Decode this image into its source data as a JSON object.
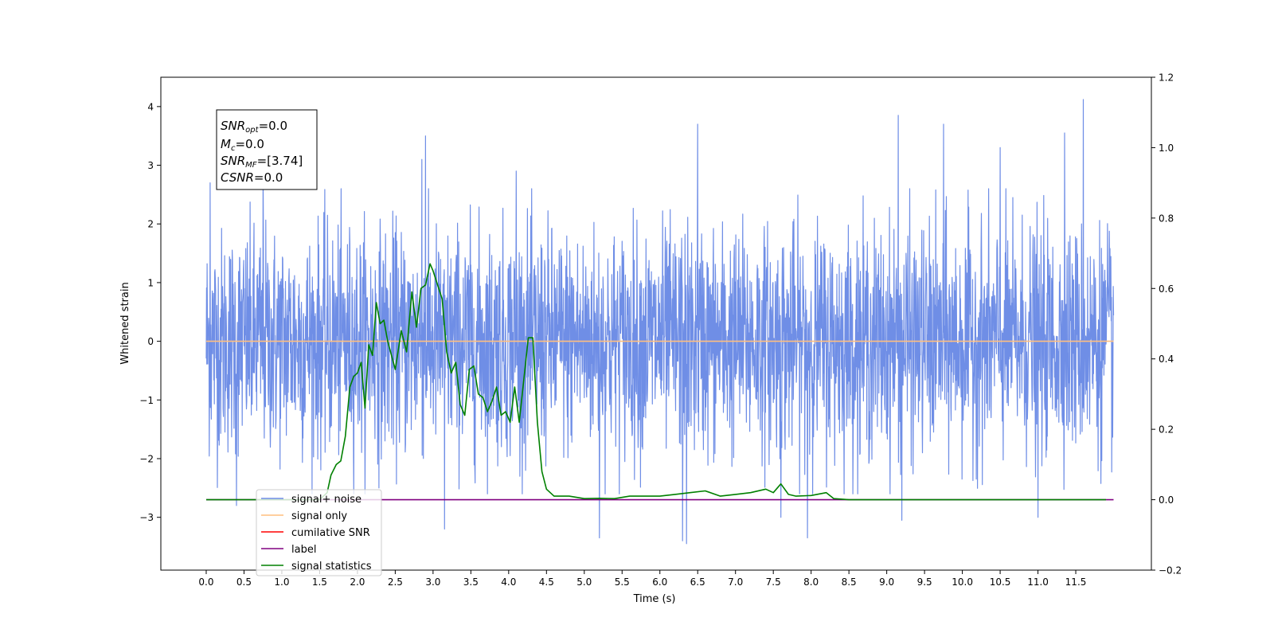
{
  "chart_data": {
    "type": "line",
    "xlabel": "Time (s)",
    "ylabel": "Whitened strain",
    "xlim": [
      -0.6,
      12.5
    ],
    "ylim": [
      -3.9,
      4.5
    ],
    "y2lim": [
      -0.2,
      1.2
    ],
    "x_ticks": [
      "0.0",
      "0.5",
      "1.0",
      "1.5",
      "2.0",
      "2.5",
      "3.0",
      "3.5",
      "4.0",
      "4.5",
      "5.0",
      "5.5",
      "6.0",
      "6.5",
      "7.0",
      "7.5",
      "8.0",
      "8.5",
      "9.0",
      "9.5",
      "10.0",
      "10.5",
      "11.0",
      "11.5"
    ],
    "y_ticks": [
      "4",
      "3",
      "2",
      "1",
      "0",
      "−1",
      "−2",
      "−3"
    ],
    "y2_ticks": [
      "1.2",
      "1.0",
      "0.8",
      "0.6",
      "0.4",
      "0.2",
      "0.0",
      "−0.2"
    ],
    "annotation": {
      "line1_sym": "SNR",
      "line1_sub": "opt",
      "line1_val": "=0.0",
      "line2_sym": "M",
      "line2_sub": "c",
      "line2_val": "=0.0",
      "line3_sym": "SNR",
      "line3_sub": "MF",
      "line3_val": "=[3.74]",
      "line4_sym": "CSNR",
      "line4_val": "=0.0"
    },
    "noise_range": [
      0.0,
      12.0
    ],
    "noise_spikes": [
      {
        "x": 0.05,
        "y": 2.7
      },
      {
        "x": 0.75,
        "y": 2.95
      },
      {
        "x": 2.85,
        "y": 3.1
      },
      {
        "x": 2.9,
        "y": 3.5
      },
      {
        "x": 4.1,
        "y": 2.9
      },
      {
        "x": 6.5,
        "y": 3.7
      },
      {
        "x": 9.15,
        "y": 3.85
      },
      {
        "x": 9.75,
        "y": 3.7
      },
      {
        "x": 11.6,
        "y": 4.12
      },
      {
        "x": 11.35,
        "y": 3.55
      },
      {
        "x": 10.5,
        "y": 3.3
      },
      {
        "x": 5.2,
        "y": -3.35
      },
      {
        "x": 6.3,
        "y": -3.4
      },
      {
        "x": 6.35,
        "y": -3.45
      },
      {
        "x": 7.95,
        "y": -3.35
      },
      {
        "x": 3.15,
        "y": -3.2
      },
      {
        "x": 9.2,
        "y": -3.05
      },
      {
        "x": 0.4,
        "y": -2.8
      },
      {
        "x": 7.6,
        "y": -3.0
      },
      {
        "x": 11.0,
        "y": -3.0
      }
    ],
    "series": [
      {
        "name": "signal+ noise",
        "color": "#6f8ee6",
        "axis": "left",
        "kind": "noise"
      },
      {
        "name": "signal only",
        "color": "#ffbf7f",
        "axis": "left",
        "x": [
          0.0,
          12.0
        ],
        "y": [
          0.0,
          0.0
        ]
      },
      {
        "name": "cumilative SNR",
        "color": "#ff0000",
        "axis": "right",
        "x": [],
        "y": []
      },
      {
        "name": "label",
        "color": "#800080",
        "axis": "right",
        "x": [
          0.0,
          12.0
        ],
        "y": [
          0.0,
          0.0
        ]
      },
      {
        "name": "signal statistics",
        "color": "#008000",
        "axis": "right",
        "x": [
          0.0,
          0.1,
          0.5,
          1.0,
          1.5,
          1.6,
          1.65,
          1.72,
          1.78,
          1.84,
          1.9,
          1.95,
          2.0,
          2.05,
          2.1,
          2.15,
          2.2,
          2.25,
          2.3,
          2.35,
          2.4,
          2.5,
          2.58,
          2.65,
          2.72,
          2.78,
          2.84,
          2.9,
          2.96,
          3.0,
          3.06,
          3.12,
          3.18,
          3.24,
          3.3,
          3.36,
          3.42,
          3.48,
          3.54,
          3.6,
          3.66,
          3.72,
          3.78,
          3.84,
          3.9,
          3.96,
          4.02,
          4.08,
          4.14,
          4.2,
          4.26,
          4.32,
          4.38,
          4.44,
          4.5,
          4.6,
          4.8,
          5.0,
          5.2,
          5.4,
          5.6,
          5.8,
          6.0,
          6.2,
          6.4,
          6.6,
          6.8,
          7.0,
          7.2,
          7.4,
          7.5,
          7.6,
          7.7,
          7.8,
          8.0,
          8.2,
          8.3,
          8.5,
          9.0,
          10.0,
          11.0,
          11.9
        ],
        "y": [
          0.0,
          0.0,
          0.0,
          0.0,
          0.0,
          0.02,
          0.07,
          0.1,
          0.11,
          0.18,
          0.32,
          0.35,
          0.36,
          0.39,
          0.26,
          0.44,
          0.41,
          0.56,
          0.5,
          0.51,
          0.45,
          0.37,
          0.48,
          0.42,
          0.59,
          0.49,
          0.6,
          0.61,
          0.67,
          0.65,
          0.61,
          0.57,
          0.42,
          0.36,
          0.39,
          0.27,
          0.24,
          0.37,
          0.38,
          0.3,
          0.29,
          0.25,
          0.28,
          0.32,
          0.24,
          0.25,
          0.22,
          0.32,
          0.22,
          0.34,
          0.46,
          0.46,
          0.22,
          0.08,
          0.03,
          0.01,
          0.01,
          0.003,
          0.004,
          0.003,
          0.01,
          0.01,
          0.01,
          0.015,
          0.02,
          0.025,
          0.01,
          0.015,
          0.02,
          0.03,
          0.02,
          0.045,
          0.015,
          0.01,
          0.012,
          0.02,
          0.003,
          0.0,
          0.0,
          0.0,
          0.0,
          0.0
        ]
      }
    ],
    "legend": {
      "placement": "lower-left",
      "entry5_glyph": "—"
    }
  }
}
